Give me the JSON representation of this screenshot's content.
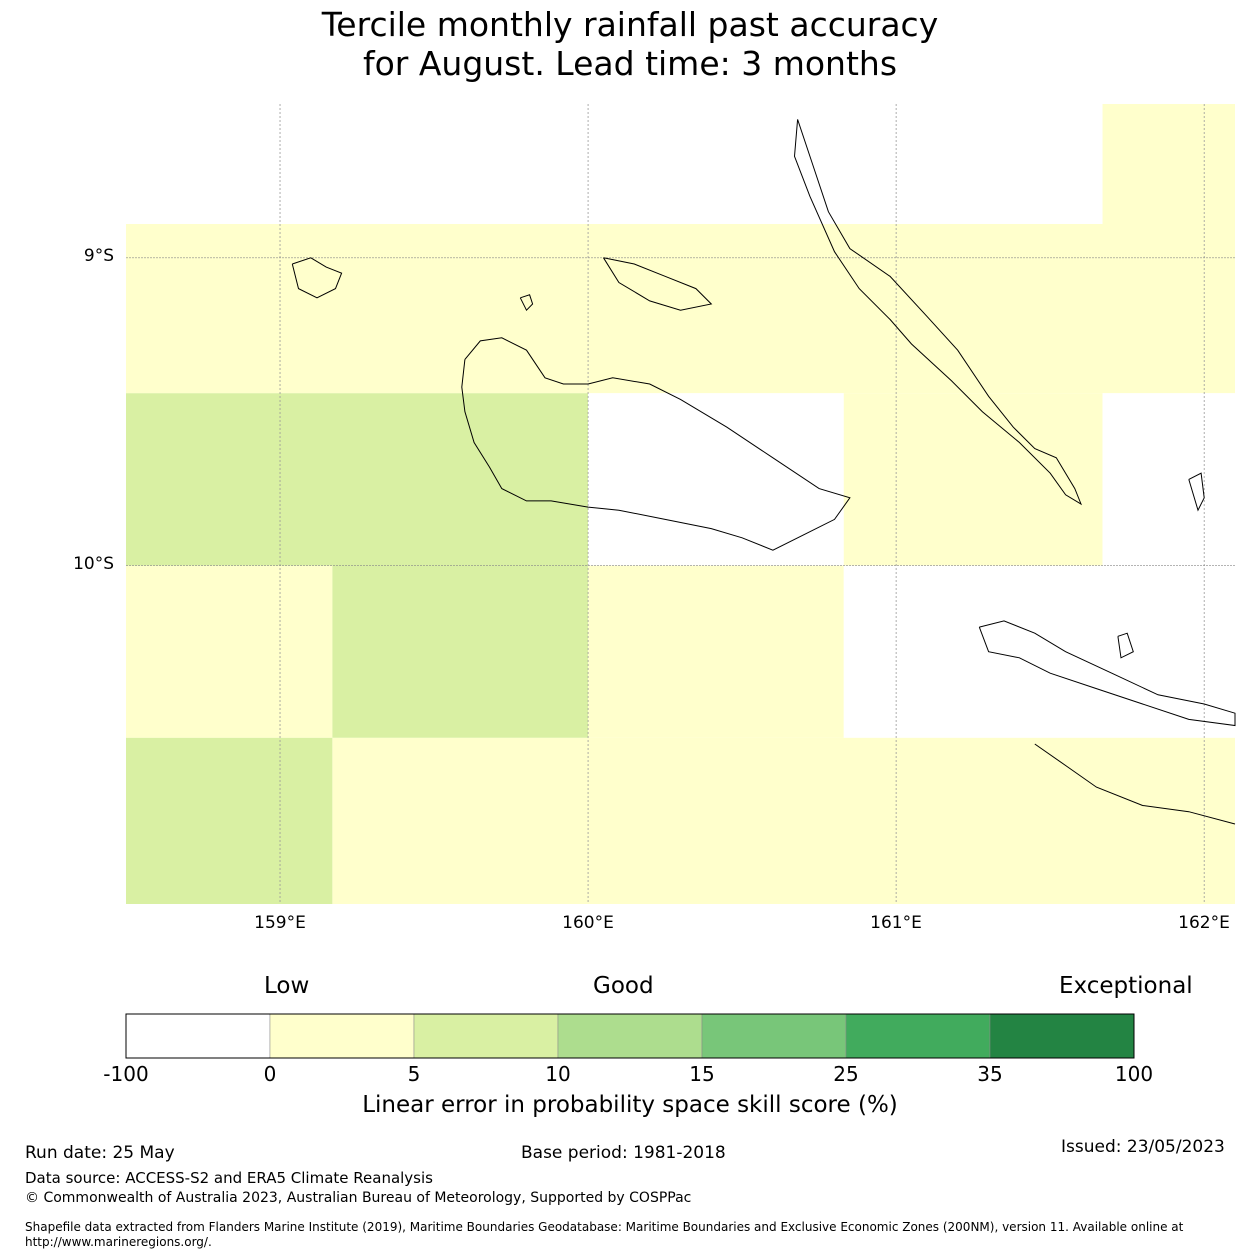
{
  "title": {
    "line1": "Tercile monthly rainfall past accuracy",
    "line2": "for August. Lead time: 3 months"
  },
  "map": {
    "lon_range": [
      158.5,
      162.1
    ],
    "lat_range": [
      -11.1,
      -8.5
    ],
    "lat_ticks": [
      {
        "value": -9,
        "label": "9°S"
      },
      {
        "value": -10,
        "label": "10°S"
      }
    ],
    "lon_ticks": [
      {
        "value": 159,
        "label": "159°E"
      },
      {
        "value": 160,
        "label": "160°E"
      },
      {
        "value": 161,
        "label": "161°E"
      },
      {
        "value": 162,
        "label": "162°E"
      }
    ],
    "grid_cells": [
      {
        "lon0": 161.67,
        "lon1": 162.1,
        "lat0": -8.5,
        "lat1": -8.89,
        "category": "0-5"
      },
      {
        "lon0": 158.5,
        "lon1": 162.1,
        "lat0": -8.89,
        "lat1": -9.44,
        "category": "0-5"
      },
      {
        "lon0": 158.5,
        "lon1": 160.0,
        "lat0": -9.44,
        "lat1": -10.0,
        "category": "5-10"
      },
      {
        "lon0": 160.0,
        "lon1": 160.83,
        "lat0": -9.44,
        "lat1": -10.0,
        "category": "-100-0"
      },
      {
        "lon0": 160.83,
        "lon1": 161.67,
        "lat0": -9.44,
        "lat1": -10.0,
        "category": "0-5"
      },
      {
        "lon0": 161.67,
        "lon1": 162.1,
        "lat0": -9.44,
        "lat1": -10.0,
        "category": "-100-0"
      },
      {
        "lon0": 158.5,
        "lon1": 159.17,
        "lat0": -10.0,
        "lat1": -10.56,
        "category": "0-5"
      },
      {
        "lon0": 159.17,
        "lon1": 160.0,
        "lat0": -10.0,
        "lat1": -10.56,
        "category": "5-10"
      },
      {
        "lon0": 160.0,
        "lon1": 160.83,
        "lat0": -10.0,
        "lat1": -10.56,
        "category": "0-5"
      },
      {
        "lon0": 160.83,
        "lon1": 162.1,
        "lat0": -10.0,
        "lat1": -10.56,
        "category": "-100-0"
      },
      {
        "lon0": 158.5,
        "lon1": 159.17,
        "lat0": -10.56,
        "lat1": -11.1,
        "category": "5-10"
      },
      {
        "lon0": 159.17,
        "lon1": 162.1,
        "lat0": -10.56,
        "lat1": -11.1,
        "category": "0-5"
      }
    ],
    "coastlines": [
      {
        "name": "guadalcanal",
        "points": [
          [
            159.6,
            -9.33
          ],
          [
            159.65,
            -9.27
          ],
          [
            159.72,
            -9.26
          ],
          [
            159.8,
            -9.3
          ],
          [
            159.86,
            -9.39
          ],
          [
            159.92,
            -9.41
          ],
          [
            160.0,
            -9.41
          ],
          [
            160.08,
            -9.39
          ],
          [
            160.2,
            -9.41
          ],
          [
            160.3,
            -9.46
          ],
          [
            160.45,
            -9.55
          ],
          [
            160.6,
            -9.65
          ],
          [
            160.75,
            -9.75
          ],
          [
            160.85,
            -9.78
          ],
          [
            160.8,
            -9.85
          ],
          [
            160.7,
            -9.9
          ],
          [
            160.6,
            -9.95
          ],
          [
            160.5,
            -9.91
          ],
          [
            160.4,
            -9.88
          ],
          [
            160.25,
            -9.85
          ],
          [
            160.1,
            -9.82
          ],
          [
            160.0,
            -9.81
          ],
          [
            159.88,
            -9.79
          ],
          [
            159.8,
            -9.79
          ],
          [
            159.72,
            -9.75
          ],
          [
            159.68,
            -9.68
          ],
          [
            159.63,
            -9.6
          ],
          [
            159.6,
            -9.5
          ],
          [
            159.59,
            -9.42
          ],
          [
            159.6,
            -9.33
          ]
        ]
      },
      {
        "name": "malaita",
        "points": [
          [
            160.68,
            -8.55
          ],
          [
            160.73,
            -8.7
          ],
          [
            160.78,
            -8.85
          ],
          [
            160.85,
            -8.97
          ],
          [
            160.98,
            -9.06
          ],
          [
            161.1,
            -9.19
          ],
          [
            161.2,
            -9.3
          ],
          [
            161.3,
            -9.45
          ],
          [
            161.38,
            -9.55
          ],
          [
            161.45,
            -9.62
          ],
          [
            161.52,
            -9.65
          ],
          [
            161.58,
            -9.75
          ],
          [
            161.6,
            -9.8
          ],
          [
            161.55,
            -9.77
          ],
          [
            161.5,
            -9.7
          ],
          [
            161.4,
            -9.6
          ],
          [
            161.28,
            -9.5
          ],
          [
            161.18,
            -9.4
          ],
          [
            161.05,
            -9.28
          ],
          [
            160.98,
            -9.2
          ],
          [
            160.88,
            -9.1
          ],
          [
            160.8,
            -8.98
          ],
          [
            160.72,
            -8.8
          ],
          [
            160.67,
            -8.67
          ],
          [
            160.68,
            -8.55
          ]
        ]
      },
      {
        "name": "makira",
        "points": [
          [
            161.27,
            -10.2
          ],
          [
            161.35,
            -10.18
          ],
          [
            161.45,
            -10.22
          ],
          [
            161.55,
            -10.28
          ],
          [
            161.7,
            -10.35
          ],
          [
            161.85,
            -10.42
          ],
          [
            162.0,
            -10.45
          ],
          [
            162.1,
            -10.48
          ],
          [
            162.1,
            -10.52
          ],
          [
            161.95,
            -10.5
          ],
          [
            161.8,
            -10.45
          ],
          [
            161.65,
            -10.4
          ],
          [
            161.5,
            -10.35
          ],
          [
            161.4,
            -10.3
          ],
          [
            161.3,
            -10.28
          ],
          [
            161.27,
            -10.2
          ]
        ]
      },
      {
        "name": "makira-south-coast",
        "points": [
          [
            161.45,
            -10.58
          ],
          [
            161.55,
            -10.65
          ],
          [
            161.65,
            -10.72
          ],
          [
            161.8,
            -10.78
          ],
          [
            161.95,
            -10.8
          ],
          [
            162.1,
            -10.84
          ]
        ]
      },
      {
        "name": "savo",
        "points": [
          [
            159.78,
            -9.13
          ],
          [
            159.81,
            -9.12
          ],
          [
            159.82,
            -9.15
          ],
          [
            159.8,
            -9.17
          ],
          [
            159.78,
            -9.13
          ]
        ]
      },
      {
        "name": "russell-islands",
        "points": [
          [
            159.04,
            -9.02
          ],
          [
            159.1,
            -9.0
          ],
          [
            159.15,
            -9.03
          ],
          [
            159.2,
            -9.05
          ],
          [
            159.18,
            -9.1
          ],
          [
            159.12,
            -9.13
          ],
          [
            159.06,
            -9.1
          ],
          [
            159.04,
            -9.02
          ]
        ]
      },
      {
        "name": "nggela",
        "points": [
          [
            160.05,
            -9.0
          ],
          [
            160.15,
            -9.02
          ],
          [
            160.25,
            -9.06
          ],
          [
            160.35,
            -9.1
          ],
          [
            160.4,
            -9.15
          ],
          [
            160.3,
            -9.17
          ],
          [
            160.2,
            -9.14
          ],
          [
            160.1,
            -9.08
          ],
          [
            160.05,
            -9.0
          ]
        ]
      },
      {
        "name": "ulawa",
        "points": [
          [
            161.95,
            -9.72
          ],
          [
            161.99,
            -9.7
          ],
          [
            162.0,
            -9.78
          ],
          [
            161.98,
            -9.82
          ],
          [
            161.95,
            -9.72
          ]
        ]
      },
      {
        "name": "ugi",
        "points": [
          [
            161.72,
            -10.23
          ],
          [
            161.75,
            -10.22
          ],
          [
            161.77,
            -10.28
          ],
          [
            161.73,
            -10.3
          ],
          [
            161.72,
            -10.23
          ]
        ]
      }
    ]
  },
  "colorbar": {
    "categories": [
      "Low",
      "Good",
      "Exceptional"
    ],
    "ticks": [
      "-100",
      "0",
      "5",
      "10",
      "15",
      "25",
      "35",
      "100"
    ],
    "colors": [
      "#ffffff",
      "#ffffcc",
      "#d9f0a3",
      "#addd8e",
      "#78c679",
      "#41ab5d",
      "#238443"
    ],
    "category_colors": {
      "-100-0": "#ffffff",
      "0-5": "#ffffcc",
      "5-10": "#d9f0a3"
    },
    "title": "Linear error in probability space skill score (%)"
  },
  "footer": {
    "run_date": "Run date: 25 May",
    "base_period": "Base period: 1981-2018",
    "issued": "Issued: 23/05/2023",
    "data_source": "Data source: ACCESS-S2 and ERA5 Climate Reanalysis",
    "copyright": "© Commonwealth of Australia 2023, Australian Bureau of Meteorology, Supported by COSPPac",
    "shapefile_line1": "Shapefile data extracted from Flanders Marine Institute (2019), Maritime Boundaries Geodatabase: Maritime Boundaries and Exclusive Economic Zones (200NM), version 11. Available online at",
    "shapefile_line2": "http://www.marineregions.org/."
  }
}
